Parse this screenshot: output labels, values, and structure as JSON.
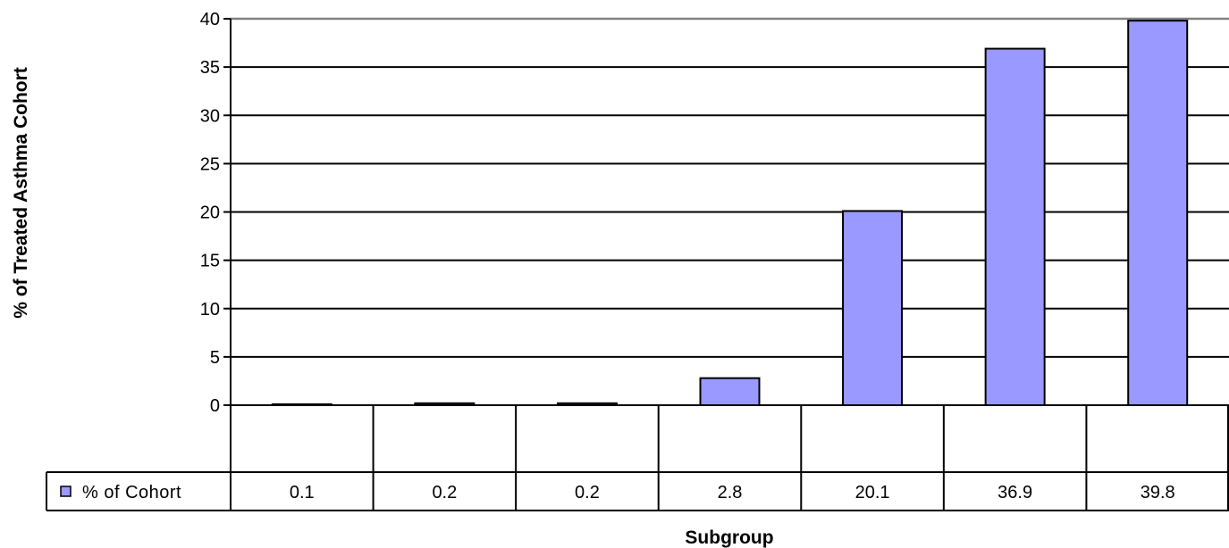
{
  "chart_data": {
    "type": "bar",
    "categories": [
      "",
      "",
      "",
      "",
      "",
      "",
      ""
    ],
    "series": [
      {
        "name": "% of Cohort",
        "values": [
          0.1,
          0.2,
          0.2,
          2.8,
          20.1,
          36.9,
          39.8
        ],
        "color": "#9999FF"
      }
    ],
    "data_table": {
      "row_label": "% of Cohort",
      "cells": [
        "0.1",
        "0.2",
        "0.2",
        "2.8",
        "20.1",
        "36.9",
        "39.8"
      ]
    },
    "yticks": [
      "0",
      "5",
      "10",
      "15",
      "20",
      "25",
      "30",
      "35",
      "40"
    ],
    "ylim": [
      0,
      40
    ],
    "xlabel": "Subgroup",
    "ylabel": "% of Treated Asthma Cohort",
    "grid": true,
    "legend": "data-table-row"
  }
}
